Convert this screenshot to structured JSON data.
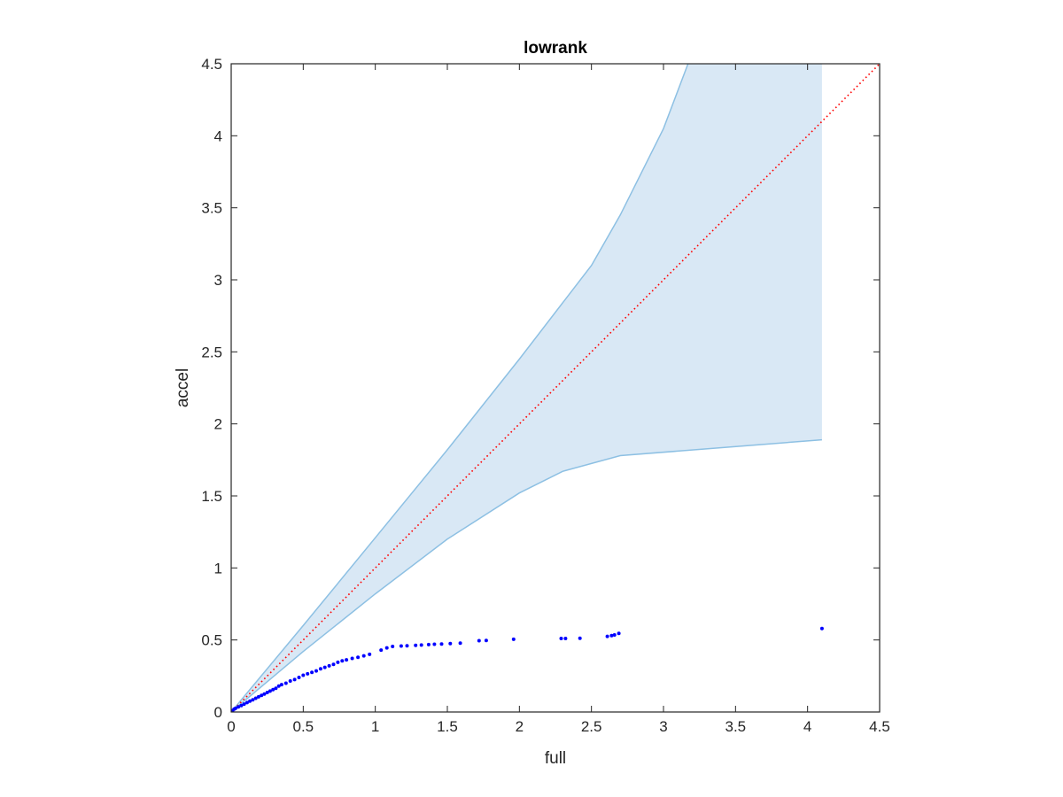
{
  "chart_data": {
    "type": "scatter",
    "title": "lowrank",
    "xlabel": "full",
    "ylabel": "accel",
    "xlim": [
      0,
      4.5
    ],
    "ylim": [
      0,
      4.5
    ],
    "xticks": [
      "0",
      "0.5",
      "1",
      "1.5",
      "2",
      "2.5",
      "3",
      "3.5",
      "4",
      "4.5"
    ],
    "yticks": [
      "0",
      "0.5",
      "1",
      "1.5",
      "2",
      "2.5",
      "3",
      "3.5",
      "4",
      "4.5"
    ],
    "grid": false,
    "legend": "none",
    "band": {
      "upper": [
        [
          0,
          0
        ],
        [
          0.5,
          0.6
        ],
        [
          1,
          1.21
        ],
        [
          1.5,
          1.82
        ],
        [
          2,
          2.45
        ],
        [
          2.5,
          3.1
        ],
        [
          2.7,
          3.45
        ],
        [
          3,
          4.05
        ],
        [
          3.17,
          4.5
        ],
        [
          4.1,
          4.5
        ]
      ],
      "lower": [
        [
          0,
          0
        ],
        [
          0.5,
          0.42
        ],
        [
          1,
          0.82
        ],
        [
          1.5,
          1.2
        ],
        [
          2,
          1.52
        ],
        [
          2.3,
          1.67
        ],
        [
          2.7,
          1.78
        ],
        [
          4.1,
          1.89
        ]
      ],
      "fill_color": "#d9e8f5",
      "line_color": "#8dc0e3"
    },
    "reference_line": {
      "from": [
        0,
        0
      ],
      "to": [
        4.5,
        4.5
      ],
      "color": "#ff0000",
      "style": "dotted"
    },
    "series": [
      {
        "marker_color": "#0000ff",
        "points": [
          [
            0.01,
            0.01
          ],
          [
            0.02,
            0.02
          ],
          [
            0.03,
            0.025
          ],
          [
            0.05,
            0.035
          ],
          [
            0.07,
            0.045
          ],
          [
            0.09,
            0.055
          ],
          [
            0.11,
            0.065
          ],
          [
            0.13,
            0.075
          ],
          [
            0.15,
            0.085
          ],
          [
            0.17,
            0.095
          ],
          [
            0.19,
            0.105
          ],
          [
            0.21,
            0.115
          ],
          [
            0.23,
            0.125
          ],
          [
            0.25,
            0.135
          ],
          [
            0.27,
            0.145
          ],
          [
            0.29,
            0.155
          ],
          [
            0.31,
            0.165
          ],
          [
            0.33,
            0.18
          ],
          [
            0.35,
            0.19
          ],
          [
            0.38,
            0.2
          ],
          [
            0.41,
            0.215
          ],
          [
            0.44,
            0.225
          ],
          [
            0.47,
            0.24
          ],
          [
            0.5,
            0.255
          ],
          [
            0.53,
            0.265
          ],
          [
            0.56,
            0.275
          ],
          [
            0.59,
            0.285
          ],
          [
            0.62,
            0.3
          ],
          [
            0.65,
            0.31
          ],
          [
            0.68,
            0.32
          ],
          [
            0.71,
            0.33
          ],
          [
            0.74,
            0.345
          ],
          [
            0.77,
            0.355
          ],
          [
            0.8,
            0.362
          ],
          [
            0.84,
            0.372
          ],
          [
            0.88,
            0.38
          ],
          [
            0.92,
            0.39
          ],
          [
            0.96,
            0.4
          ],
          [
            1.04,
            0.43
          ],
          [
            1.08,
            0.445
          ],
          [
            1.12,
            0.455
          ],
          [
            1.18,
            0.458
          ],
          [
            1.22,
            0.46
          ],
          [
            1.28,
            0.462
          ],
          [
            1.32,
            0.465
          ],
          [
            1.37,
            0.468
          ],
          [
            1.41,
            0.47
          ],
          [
            1.46,
            0.472
          ],
          [
            1.52,
            0.475
          ],
          [
            1.59,
            0.478
          ],
          [
            1.72,
            0.495
          ],
          [
            1.77,
            0.497
          ],
          [
            1.96,
            0.505
          ],
          [
            2.29,
            0.51
          ],
          [
            2.32,
            0.51
          ],
          [
            2.42,
            0.512
          ],
          [
            2.61,
            0.525
          ],
          [
            2.64,
            0.53
          ],
          [
            2.66,
            0.535
          ],
          [
            2.69,
            0.545
          ],
          [
            4.1,
            0.58
          ]
        ]
      }
    ]
  }
}
